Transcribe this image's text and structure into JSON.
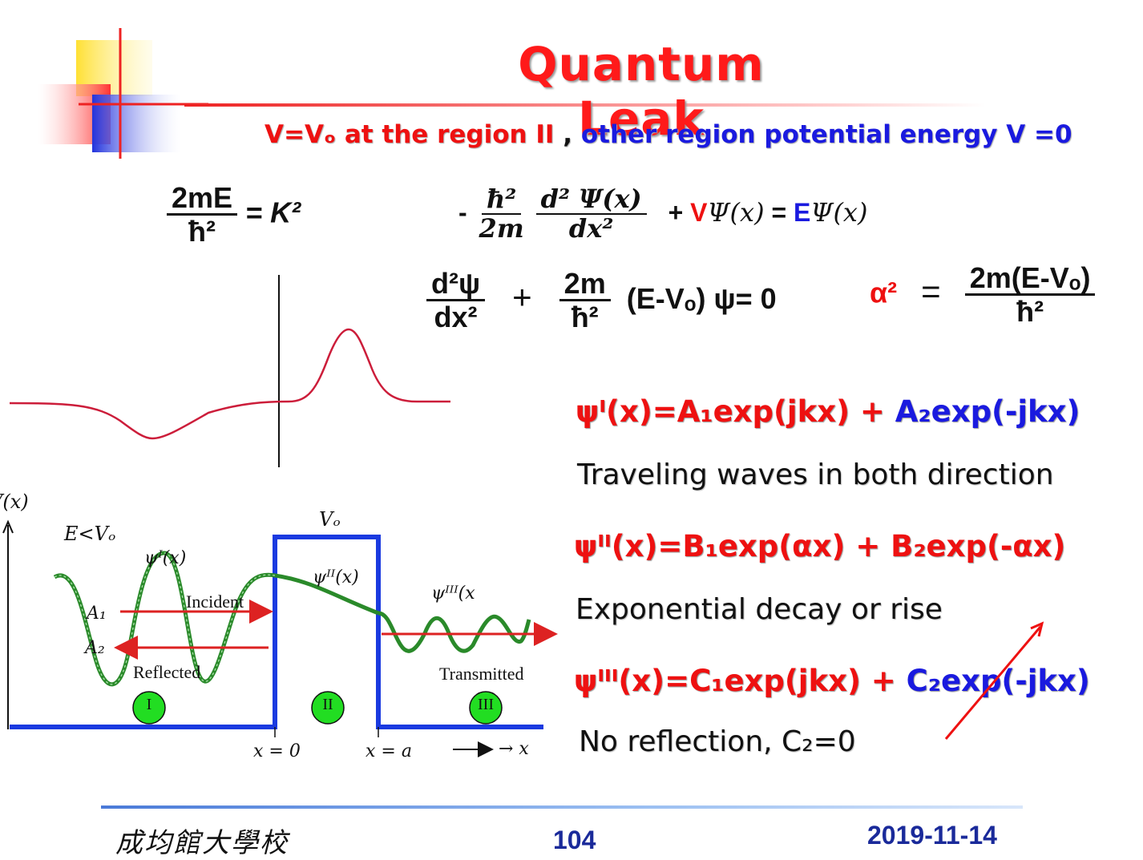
{
  "slide": {
    "title": "Quantum Leak",
    "subtitle_red": "V=Vₒ at the region II",
    "subtitle_sep": " , ",
    "subtitle_blue": "other region potential energy V =0"
  },
  "equations": {
    "k_num": "2mE",
    "k_den": "ħ²",
    "k_rhs": "= K²",
    "schr_minus": "-",
    "schr_h": "ħ²",
    "schr_2m": "2m",
    "schr_d2psi": "d² Ψ(x)",
    "schr_dx2": "dx²",
    "schr_plus": "+",
    "schr_V": "V",
    "schr_psi": "Ψ(x)",
    "schr_eq": " = ",
    "schr_E": "E",
    "schr_psi2": "Ψ(x)",
    "d2psi": "d²ψ",
    "dx2": "dx²",
    "plus": "+",
    "twom": "2m",
    "hbar2": "ħ²",
    "ev_term": "(E-Vₒ) ψ= 0",
    "alpha2": "α²",
    "alpha_eq": "=",
    "alpha_num": "2m(E-Vₒ)",
    "alpha_den": "ħ²"
  },
  "solutions": [
    {
      "red": "ψᴵ(x)=A₁exp(jkx)",
      "plus": " + ",
      "blue": "A₂exp(-jkx)",
      "desc": "Traveling waves in both direction"
    },
    {
      "red": "ψᴵᴵ(x)=B₁exp(αx) + B₂exp(-αx)",
      "plus": "",
      "blue": "",
      "desc": "Exponential decay or rise"
    },
    {
      "red": "ψᴵᴵᴵ(x)=C₁exp(jkx)",
      "plus": " + ",
      "blue": "C₂exp(-jkx)",
      "desc": "No reflection, C₂=0"
    }
  ],
  "diagram": {
    "v_axis": "V(x)",
    "e_label": "E<Vₒ",
    "vo_label": "Vₒ",
    "psi1": "ψᴵ(x)",
    "psi2": "ψᴵᴵ(x)",
    "psi3": "ψᴵᴵᴵ(x",
    "incident": "Incident",
    "reflected": "Reflected",
    "transmitted": "Transmitted",
    "a1": "A₁",
    "a2": "A₂",
    "region1": "I",
    "region2": "II",
    "region3": "III",
    "x0": "x = 0",
    "xa": "x = a",
    "x_arrow": "→ x"
  },
  "footer": {
    "school": "成均館大學校",
    "page": "104",
    "date": "2019-11-14"
  },
  "colors": {
    "title": "#ff1a1a",
    "blue": "#1a1adf",
    "red": "#ee1111",
    "barrier": "#1a3ae0",
    "wave": "#2a8a2a",
    "region_fill": "#22dd22"
  }
}
